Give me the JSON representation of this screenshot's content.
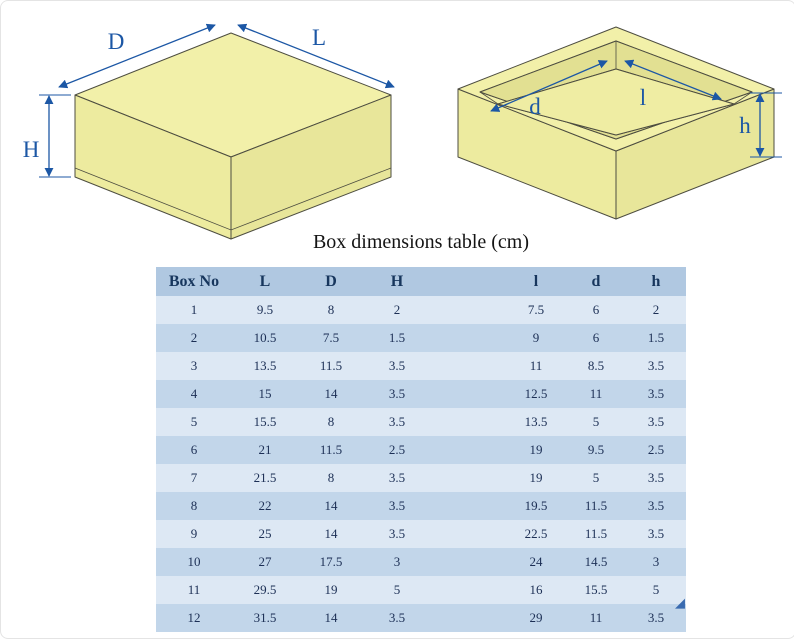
{
  "title": "Box dimensions table (cm)",
  "diagram": {
    "closed_box": {
      "depth_label": "D",
      "length_label": "L",
      "height_label": "H"
    },
    "open_box": {
      "inner_length_label": "l",
      "inner_depth_label": "d",
      "inner_height_label": "h"
    }
  },
  "table": {
    "headers": [
      "Box No",
      "L",
      "D",
      "H",
      "",
      "l",
      "d",
      "h"
    ],
    "rows": [
      [
        "1",
        "9.5",
        "8",
        "2",
        "",
        "7.5",
        "6",
        "2"
      ],
      [
        "2",
        "10.5",
        "7.5",
        "1.5",
        "",
        "9",
        "6",
        "1.5"
      ],
      [
        "3",
        "13.5",
        "11.5",
        "3.5",
        "",
        "11",
        "8.5",
        "3.5"
      ],
      [
        "4",
        "15",
        "14",
        "3.5",
        "",
        "12.5",
        "11",
        "3.5"
      ],
      [
        "5",
        "15.5",
        "8",
        "3.5",
        "",
        "13.5",
        "5",
        "3.5"
      ],
      [
        "6",
        "21",
        "11.5",
        "2.5",
        "",
        "19",
        "9.5",
        "2.5"
      ],
      [
        "7",
        "21.5",
        "8",
        "3.5",
        "",
        "19",
        "5",
        "3.5"
      ],
      [
        "8",
        "22",
        "14",
        "3.5",
        "",
        "19.5",
        "11.5",
        "3.5"
      ],
      [
        "9",
        "25",
        "14",
        "3.5",
        "",
        "22.5",
        "11.5",
        "3.5"
      ],
      [
        "10",
        "27",
        "17.5",
        "3",
        "",
        "24",
        "14.5",
        "3"
      ],
      [
        "11",
        "29.5",
        "19",
        "5",
        "",
        "16",
        "15.5",
        "5"
      ],
      [
        "12",
        "31.5",
        "14",
        "3.5",
        "",
        "29",
        "11",
        "3.5"
      ]
    ]
  },
  "colors": {
    "accent-blue": "#1c57a5",
    "box-fill-top": "#f2f0a9",
    "box-fill-left": "#edeb9f",
    "box-fill-right": "#e8e69a",
    "box-inner-wall": "#e2e092",
    "box-floor": "#efeda3",
    "box-outline": "#4d4d40",
    "table-header-bg": "#b0c8e1",
    "row-light": "#dde8f4",
    "row-dark": "#c2d6ea",
    "header-text": "#17365d",
    "cell-text": "#1c2f55"
  }
}
